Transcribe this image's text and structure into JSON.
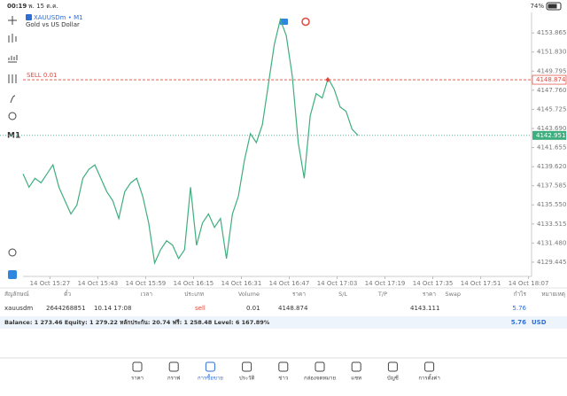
{
  "status_bar": {
    "time": "00:19",
    "date": "พ. 15 ต.ค.",
    "battery": "74%"
  },
  "chart": {
    "type": "line",
    "symbol": "XAUUSDm • M1",
    "description": "Gold vs US Dollar",
    "timeframe": "M1",
    "values": [
      4138.85,
      4137.43,
      4138.38,
      4137.9,
      4138.85,
      4139.81,
      4137.43,
      4136.0,
      4134.58,
      4135.53,
      4138.38,
      4139.33,
      4139.81,
      4138.38,
      4136.95,
      4136.0,
      4134.1,
      4136.95,
      4137.9,
      4138.38,
      4136.48,
      4133.63,
      4129.36,
      4130.78,
      4131.73,
      4131.25,
      4129.83,
      4130.78,
      4137.43,
      4131.25,
      4133.63,
      4134.58,
      4133.15,
      4134.1,
      4129.83,
      4134.58,
      4136.48,
      4140.28,
      4143.13,
      4142.18,
      4144.08,
      4148.35,
      4152.63,
      4155.29,
      4153.58,
      4149.3,
      4142.18,
      4138.38,
      4145.03,
      4147.4,
      4146.93,
      4149.02,
      4147.88,
      4145.98,
      4145.5,
      4143.6,
      4142.95
    ],
    "color": "#3fae7f",
    "xlim": [
      0,
      85
    ],
    "xticks": [
      {
        "value": 4.5,
        "label": "14 Oct 15:27"
      },
      {
        "value": 12.5,
        "label": "14 Oct 15:43"
      },
      {
        "value": 20.5,
        "label": "14 Oct 15:59"
      },
      {
        "value": 28.5,
        "label": "14 Oct 16:15"
      },
      {
        "value": 36.5,
        "label": "14 Oct 16:31"
      },
      {
        "value": 44.5,
        "label": "14 Oct 16:47"
      },
      {
        "value": 52.5,
        "label": "14 Oct 17:03"
      },
      {
        "value": 60.5,
        "label": "14 Oct 17:19"
      },
      {
        "value": 68.5,
        "label": "14 Oct 17:35"
      },
      {
        "value": 76.5,
        "label": "14 Oct 17:51"
      },
      {
        "value": 84.5,
        "label": "14 Oct 18:07"
      }
    ],
    "ylim": [
      4127.93,
      4156.05
    ],
    "yticks": [
      4153.865,
      {
        "value": 4151.83,
        "label": "4151.830"
      },
      4149.795,
      {
        "value": 4147.76,
        "label": "4147.760"
      },
      4145.725,
      {
        "value": 4143.69,
        "label": "4143.690"
      },
      4141.655,
      {
        "value": 4139.62,
        "label": "4139.620"
      },
      4137.585,
      {
        "value": 4135.55,
        "label": "4135.550"
      },
      4133.515,
      {
        "value": 4131.48,
        "label": "4131.480"
      },
      4129.445
    ],
    "order_line": {
      "label": "SELL 0.01",
      "value": 4148.874,
      "color": "#e0483e"
    },
    "current_price": {
      "value": 4142.951,
      "color": "#3fae7f"
    }
  },
  "table": {
    "headers": [
      "สัญลักษณ์",
      "ตั๋ว",
      "เวลา",
      "ประเภท",
      "Volume",
      "ราคา",
      "S/L",
      "T/P",
      "ราคา",
      "Swap",
      "กำไร",
      "หมายเหตุ"
    ],
    "row": {
      "symbol": "xauusdm",
      "ticket": "2644268851",
      "time": "10.14 17:08",
      "type": "sell",
      "volume": "0.01",
      "price": "4148.874",
      "current_price": "4143.111",
      "profit": "5.76"
    }
  },
  "summary": {
    "text": "Balance: 1 273.46 Equity: 1 279.22 หลักประกัน: 20.74 ฟรี: 1 258.48 Level: 6 167.89%",
    "profit": "5.76",
    "currency": "USD"
  },
  "tabs": [
    "ราคา",
    "กราฟ",
    "การซื้อขาย",
    "ประวัติ",
    "ข่าว",
    "กล่องจดหมาย",
    "แชท",
    "บัญชี",
    "การตั้งค่า"
  ]
}
